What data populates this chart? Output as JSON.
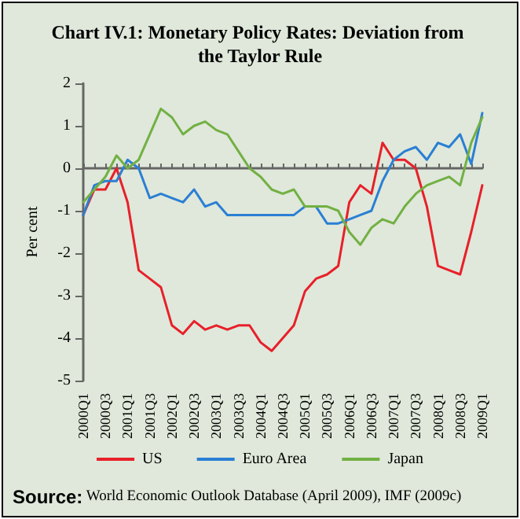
{
  "chart_data": {
    "type": "line",
    "title": "Chart IV.1: Monetary Policy Rates: Deviation from the Taylor Rule",
    "ylabel": "Per cent",
    "categories": [
      "2000Q1",
      null,
      "2000Q3",
      null,
      "2001Q1",
      null,
      "2001Q3",
      null,
      "2002Q1",
      null,
      "2002Q3",
      null,
      "2003Q1",
      null,
      "2003Q3",
      null,
      "2004Q1",
      null,
      "2004Q3",
      null,
      "2005Q1",
      null,
      "2005Q3",
      null,
      "2006Q1",
      null,
      "2006Q3",
      null,
      "2007Q1",
      null,
      "2007Q3",
      null,
      "2008Q1",
      null,
      "2008Q3",
      null,
      "2009Q1"
    ],
    "series": [
      {
        "name": "US",
        "color": "#e8202a",
        "values": [
          -1.1,
          -0.5,
          -0.5,
          0.0,
          -0.8,
          -2.4,
          -2.6,
          -2.8,
          -3.7,
          -3.9,
          -3.6,
          -3.8,
          -3.7,
          -3.8,
          -3.7,
          -3.7,
          -4.1,
          -4.3,
          -4.0,
          -3.7,
          -2.9,
          -2.6,
          -2.5,
          -2.3,
          -0.8,
          -0.4,
          -0.6,
          0.6,
          0.2,
          0.2,
          0.0,
          -0.9,
          -2.3,
          -2.4,
          -2.5,
          -1.5,
          -0.4
        ]
      },
      {
        "name": "Euro Area",
        "color": "#2a7fd4",
        "values": [
          -1.1,
          -0.4,
          -0.3,
          -0.3,
          0.2,
          0.0,
          -0.7,
          -0.6,
          -0.7,
          -0.8,
          -0.5,
          -0.9,
          -0.8,
          -1.1,
          -1.1,
          -1.1,
          -1.1,
          -1.1,
          -1.1,
          -1.1,
          -0.9,
          -0.9,
          -1.3,
          -1.3,
          -1.2,
          -1.1,
          -1.0,
          -0.3,
          0.2,
          0.4,
          0.5,
          0.2,
          0.6,
          0.5,
          0.8,
          0.1,
          1.3
        ]
      },
      {
        "name": "Japan",
        "color": "#72b043",
        "values": [
          -0.8,
          -0.5,
          -0.2,
          0.3,
          0.0,
          0.2,
          0.8,
          1.4,
          1.2,
          0.8,
          1.0,
          1.1,
          0.9,
          0.8,
          0.4,
          0.0,
          -0.2,
          -0.5,
          -0.6,
          -0.5,
          -0.9,
          -0.9,
          -0.9,
          -1.0,
          -1.5,
          -1.8,
          -1.4,
          -1.2,
          -1.3,
          -0.9,
          -0.6,
          -0.4,
          -0.3,
          -0.2,
          -0.4,
          0.6,
          1.2
        ]
      }
    ],
    "ylim": [
      -5,
      2
    ],
    "yticks": [
      -5,
      -4,
      -3,
      -2,
      -1,
      0,
      1,
      2
    ],
    "legend": "bottom",
    "marker": "none",
    "line_style": "solid",
    "annotations": [
      "Source: World Economic Outlook Database (April 2009), IMF (2009c)"
    ]
  }
}
